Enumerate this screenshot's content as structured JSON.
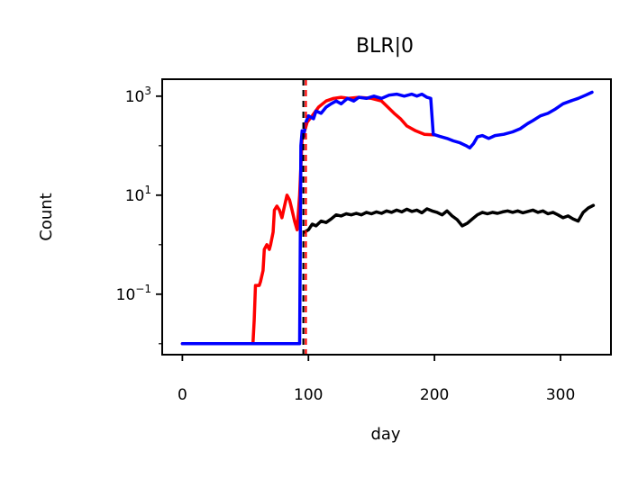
{
  "chart_data": {
    "type": "line",
    "title": "BLR|0",
    "xlabel": "day",
    "ylabel": "Count",
    "yscale": "log",
    "xlim": [
      -16,
      340
    ],
    "ylim": [
      0.006,
      2200
    ],
    "grid": false,
    "x_ticks": [
      0,
      100,
      200,
      300
    ],
    "x_tick_labels": [
      "0",
      "100",
      "200",
      "300"
    ],
    "y_ticks": [
      0.1,
      10,
      1000
    ],
    "y_tick_labels": [
      {
        "base": "10",
        "exp": "−1"
      },
      {
        "base": "10",
        "exp": "1"
      },
      {
        "base": "10",
        "exp": "3"
      }
    ],
    "vlines": [
      {
        "x": 96,
        "color": "#000000",
        "style": "dashed"
      },
      {
        "x": 98,
        "color": "#ff0000",
        "style": "dashed"
      }
    ],
    "series": [
      {
        "color": "#ff0000",
        "points": [
          [
            0,
            0.01
          ],
          [
            56,
            0.01
          ],
          [
            57,
            0.03
          ],
          [
            58,
            0.15
          ],
          [
            61,
            0.15
          ],
          [
            62,
            0.18
          ],
          [
            64,
            0.3
          ],
          [
            65,
            0.8
          ],
          [
            67,
            1.0
          ],
          [
            69,
            0.8
          ],
          [
            70,
            1.0
          ],
          [
            72,
            1.8
          ],
          [
            73,
            5
          ],
          [
            75,
            6
          ],
          [
            77,
            5
          ],
          [
            79,
            3.5
          ],
          [
            81,
            6
          ],
          [
            83,
            10
          ],
          [
            85,
            8
          ],
          [
            87,
            5
          ],
          [
            89,
            3
          ],
          [
            91,
            2
          ],
          [
            93,
            10
          ],
          [
            95,
            150
          ],
          [
            97,
            200
          ],
          [
            99,
            300
          ],
          [
            103,
            400
          ],
          [
            108,
            600
          ],
          [
            114,
            800
          ],
          [
            120,
            900
          ],
          [
            126,
            950
          ],
          [
            132,
            900
          ],
          [
            140,
            950
          ],
          [
            150,
            900
          ],
          [
            158,
            800
          ],
          [
            163,
            600
          ],
          [
            168,
            450
          ],
          [
            173,
            350
          ],
          [
            178,
            250
          ],
          [
            185,
            200
          ],
          [
            192,
            170
          ],
          [
            200,
            165
          ]
        ]
      },
      {
        "color": "#0000ff",
        "points": [
          [
            0,
            0.01
          ],
          [
            93,
            0.01
          ],
          [
            94,
            100
          ],
          [
            95,
            200
          ],
          [
            96,
            150
          ],
          [
            98,
            300
          ],
          [
            100,
            400
          ],
          [
            104,
            350
          ],
          [
            106,
            500
          ],
          [
            110,
            450
          ],
          [
            114,
            600
          ],
          [
            118,
            700
          ],
          [
            122,
            800
          ],
          [
            126,
            700
          ],
          [
            131,
            900
          ],
          [
            136,
            800
          ],
          [
            140,
            950
          ],
          [
            146,
            900
          ],
          [
            152,
            1000
          ],
          [
            158,
            900
          ],
          [
            164,
            1050
          ],
          [
            170,
            1100
          ],
          [
            176,
            1000
          ],
          [
            182,
            1100
          ],
          [
            186,
            1000
          ],
          [
            190,
            1100
          ],
          [
            194,
            950
          ],
          [
            197,
            900
          ],
          [
            199,
            170
          ],
          [
            204,
            155
          ],
          [
            210,
            140
          ],
          [
            215,
            125
          ],
          [
            220,
            115
          ],
          [
            225,
            100
          ],
          [
            228,
            90
          ],
          [
            231,
            110
          ],
          [
            234,
            150
          ],
          [
            238,
            160
          ],
          [
            243,
            140
          ],
          [
            248,
            160
          ],
          [
            255,
            170
          ],
          [
            262,
            190
          ],
          [
            268,
            220
          ],
          [
            274,
            280
          ],
          [
            278,
            320
          ],
          [
            284,
            400
          ],
          [
            290,
            450
          ],
          [
            296,
            550
          ],
          [
            302,
            700
          ],
          [
            308,
            800
          ],
          [
            314,
            900
          ],
          [
            320,
            1050
          ],
          [
            325,
            1200
          ]
        ]
      },
      {
        "color": "#000000",
        "points": [
          [
            97,
            1.8
          ],
          [
            100,
            2.0
          ],
          [
            103,
            2.6
          ],
          [
            106,
            2.4
          ],
          [
            110,
            3.0
          ],
          [
            114,
            2.8
          ],
          [
            118,
            3.3
          ],
          [
            122,
            4.0
          ],
          [
            126,
            3.8
          ],
          [
            130,
            4.2
          ],
          [
            134,
            4.0
          ],
          [
            138,
            4.3
          ],
          [
            142,
            4.0
          ],
          [
            146,
            4.5
          ],
          [
            150,
            4.2
          ],
          [
            154,
            4.6
          ],
          [
            158,
            4.3
          ],
          [
            162,
            4.8
          ],
          [
            166,
            4.5
          ],
          [
            170,
            5.0
          ],
          [
            174,
            4.6
          ],
          [
            178,
            5.2
          ],
          [
            182,
            4.7
          ],
          [
            186,
            5.0
          ],
          [
            190,
            4.4
          ],
          [
            194,
            5.3
          ],
          [
            198,
            4.8
          ],
          [
            202,
            4.5
          ],
          [
            206,
            4.0
          ],
          [
            210,
            4.8
          ],
          [
            214,
            3.8
          ],
          [
            218,
            3.2
          ],
          [
            222,
            2.4
          ],
          [
            226,
            2.7
          ],
          [
            230,
            3.3
          ],
          [
            234,
            4.0
          ],
          [
            238,
            4.5
          ],
          [
            242,
            4.2
          ],
          [
            246,
            4.5
          ],
          [
            250,
            4.3
          ],
          [
            254,
            4.6
          ],
          [
            258,
            4.8
          ],
          [
            262,
            4.5
          ],
          [
            266,
            4.8
          ],
          [
            270,
            4.4
          ],
          [
            274,
            4.7
          ],
          [
            278,
            5.0
          ],
          [
            282,
            4.5
          ],
          [
            286,
            4.8
          ],
          [
            290,
            4.2
          ],
          [
            294,
            4.5
          ],
          [
            298,
            4.0
          ],
          [
            302,
            3.5
          ],
          [
            306,
            3.8
          ],
          [
            310,
            3.3
          ],
          [
            314,
            3.0
          ],
          [
            318,
            4.5
          ],
          [
            322,
            5.5
          ],
          [
            326,
            6.2
          ]
        ]
      }
    ]
  }
}
